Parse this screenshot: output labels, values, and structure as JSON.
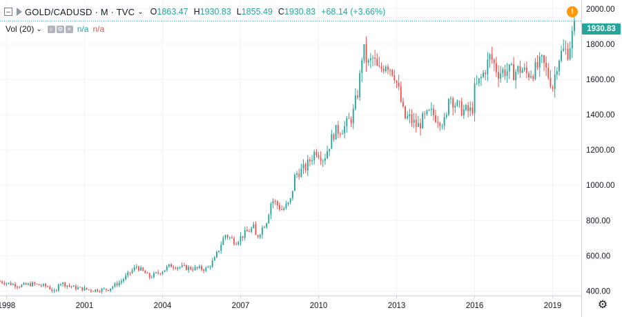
{
  "header": {
    "symbol": "GOLD/CADUSD · M · TVC",
    "open_label": "O",
    "open": "1863.47",
    "high_label": "H",
    "high": "1930.83",
    "low_label": "L",
    "low": "1855.49",
    "close_label": "C",
    "close": "1930.83",
    "change": "+68.14 (+3.66%)"
  },
  "volume": {
    "label": "Vol (20)",
    "value1": "n/a",
    "value2": "n/a"
  },
  "last_price_label": "1930.83",
  "colors": {
    "up": "#26a69a",
    "down": "#ef5350",
    "grid": "#f0f3fa",
    "text": "#131722",
    "axis": "#d1d4dc"
  },
  "chart_data": {
    "type": "candlestick",
    "interval": "monthly",
    "x_range": [
      1997.75,
      2020.1
    ],
    "x_ticks": [
      "1998",
      "2001",
      "2004",
      "2007",
      "2010",
      "2013",
      "2016",
      "2019"
    ],
    "ylim": [
      300,
      2050
    ],
    "y_ticks": [
      "2000.00",
      "1800.00",
      "1600.00",
      "1400.00",
      "1200.00",
      "1000.00",
      "800.00",
      "600.00",
      "400.00"
    ],
    "last_price": 1930.83,
    "keypoints": [
      [
        1997.75,
        455
      ],
      [
        1998.5,
        430
      ],
      [
        1999.0,
        440
      ],
      [
        1999.6,
        425
      ],
      [
        1999.9,
        385
      ],
      [
        2000.0,
        450
      ],
      [
        2000.6,
        420
      ],
      [
        2001.3,
        405
      ],
      [
        2001.9,
        410
      ],
      [
        2002.4,
        455
      ],
      [
        2003.0,
        540
      ],
      [
        2003.5,
        480
      ],
      [
        2004.0,
        515
      ],
      [
        2004.3,
        545
      ],
      [
        2005.0,
        530
      ],
      [
        2005.7,
        525
      ],
      [
        2006.0,
        580
      ],
      [
        2006.4,
        720
      ],
      [
        2006.8,
        680
      ],
      [
        2007.2,
        730
      ],
      [
        2007.5,
        760
      ],
      [
        2007.6,
        700
      ],
      [
        2008.0,
        800
      ],
      [
        2008.2,
        920
      ],
      [
        2008.6,
        860
      ],
      [
        2008.9,
        900
      ],
      [
        2009.1,
        1060
      ],
      [
        2009.5,
        1100
      ],
      [
        2009.9,
        1200
      ],
      [
        2010.2,
        1150
      ],
      [
        2010.6,
        1300
      ],
      [
        2011.0,
        1330
      ],
      [
        2011.3,
        1390
      ],
      [
        2011.55,
        1560
      ],
      [
        2011.7,
        1780
      ],
      [
        2011.9,
        1680
      ],
      [
        2012.1,
        1720
      ],
      [
        2012.3,
        1640
      ],
      [
        2012.6,
        1700
      ],
      [
        2012.9,
        1640
      ],
      [
        2013.1,
        1520
      ],
      [
        2013.3,
        1380
      ],
      [
        2013.5,
        1380
      ],
      [
        2013.8,
        1330
      ],
      [
        2014.0,
        1370
      ],
      [
        2014.3,
        1410
      ],
      [
        2014.6,
        1380
      ],
      [
        2014.9,
        1350
      ],
      [
        2015.0,
        1520
      ],
      [
        2015.3,
        1450
      ],
      [
        2015.6,
        1420
      ],
      [
        2015.9,
        1420
      ],
      [
        2016.0,
        1540
      ],
      [
        2016.3,
        1620
      ],
      [
        2016.6,
        1730
      ],
      [
        2016.9,
        1640
      ],
      [
        2017.2,
        1650
      ],
      [
        2017.5,
        1640
      ],
      [
        2017.8,
        1660
      ],
      [
        2018.0,
        1630
      ],
      [
        2018.3,
        1650
      ],
      [
        2018.6,
        1700
      ],
      [
        2018.9,
        1600
      ],
      [
        2019.0,
        1560
      ],
      [
        2019.2,
        1720
      ],
      [
        2019.4,
        1760
      ],
      [
        2019.6,
        1760
      ],
      [
        2019.75,
        1850
      ],
      [
        2019.85,
        1930
      ]
    ]
  }
}
